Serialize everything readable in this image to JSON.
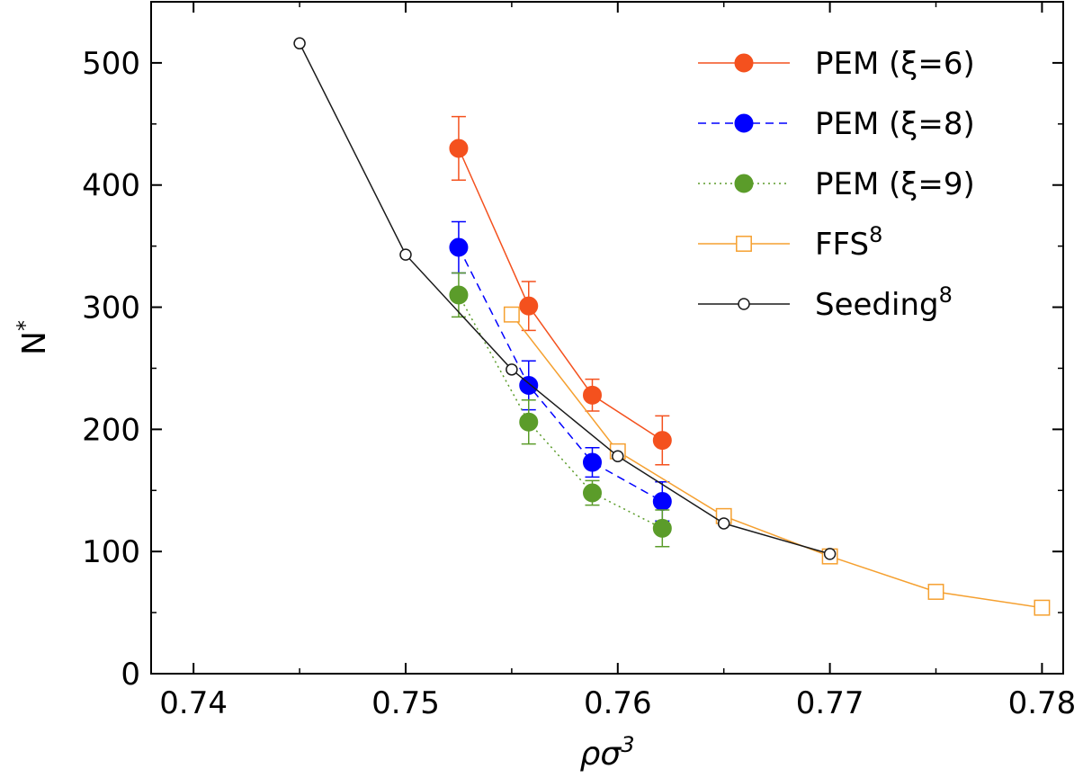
{
  "chart_data": {
    "type": "scatter",
    "title": "",
    "xlabel": {
      "base": "ρσ",
      "sup": "3"
    },
    "ylabel": {
      "base": "N",
      "sup": "*"
    },
    "xlim": [
      0.738,
      0.781
    ],
    "ylim": [
      0,
      550
    ],
    "xticks": [
      0.74,
      0.75,
      0.76,
      0.77,
      0.78
    ],
    "xtick_labels": [
      "0.74",
      "0.75",
      "0.76",
      "0.77",
      "0.78"
    ],
    "yticks": [
      0,
      100,
      200,
      300,
      400,
      500
    ],
    "ytick_labels": [
      "0",
      "100",
      "200",
      "300",
      "400",
      "500"
    ],
    "grid": false,
    "legend_position": "top-right",
    "series": [
      {
        "name": "PEM (ξ=6)",
        "label": {
          "base": "PEM (ξ=6)",
          "sup": ""
        },
        "color": "#f4511e",
        "line_style": "solid",
        "marker": "filled-circle",
        "x": [
          0.7525,
          0.7558,
          0.7588,
          0.7621
        ],
        "y": [
          430,
          301,
          228,
          191
        ],
        "err": [
          26,
          20,
          13,
          20
        ]
      },
      {
        "name": "PEM (ξ=8)",
        "label": {
          "base": "PEM (ξ=8)",
          "sup": ""
        },
        "color": "#0000ff",
        "line_style": "dashed",
        "marker": "filled-circle",
        "x": [
          0.7525,
          0.7558,
          0.7588,
          0.7621
        ],
        "y": [
          349,
          236,
          173,
          141
        ],
        "err": [
          21,
          20,
          12,
          16
        ]
      },
      {
        "name": "PEM (ξ=9)",
        "label": {
          "base": "PEM (ξ=9)",
          "sup": ""
        },
        "color": "#5b9c2a",
        "line_style": "dotted",
        "marker": "filled-circle",
        "x": [
          0.7525,
          0.7558,
          0.7588,
          0.7621
        ],
        "y": [
          310,
          206,
          148,
          119
        ],
        "err": [
          18,
          18,
          10,
          15
        ]
      },
      {
        "name": "FFS8",
        "label": {
          "base": "FFS",
          "sup": "8"
        },
        "color": "#f5a030",
        "line_style": "solid",
        "marker": "open-square",
        "x": [
          0.755,
          0.76,
          0.765,
          0.77,
          0.775,
          0.78
        ],
        "y": [
          294,
          182,
          129,
          96,
          67,
          54
        ],
        "err": null
      },
      {
        "name": "Seeding8",
        "label": {
          "base": "Seeding",
          "sup": "8"
        },
        "color": "#1a1a1a",
        "line_style": "solid",
        "marker": "open-circle",
        "x": [
          0.745,
          0.75,
          0.755,
          0.76,
          0.765,
          0.77
        ],
        "y": [
          516,
          343,
          249,
          178,
          123,
          98
        ],
        "err": null
      }
    ]
  }
}
